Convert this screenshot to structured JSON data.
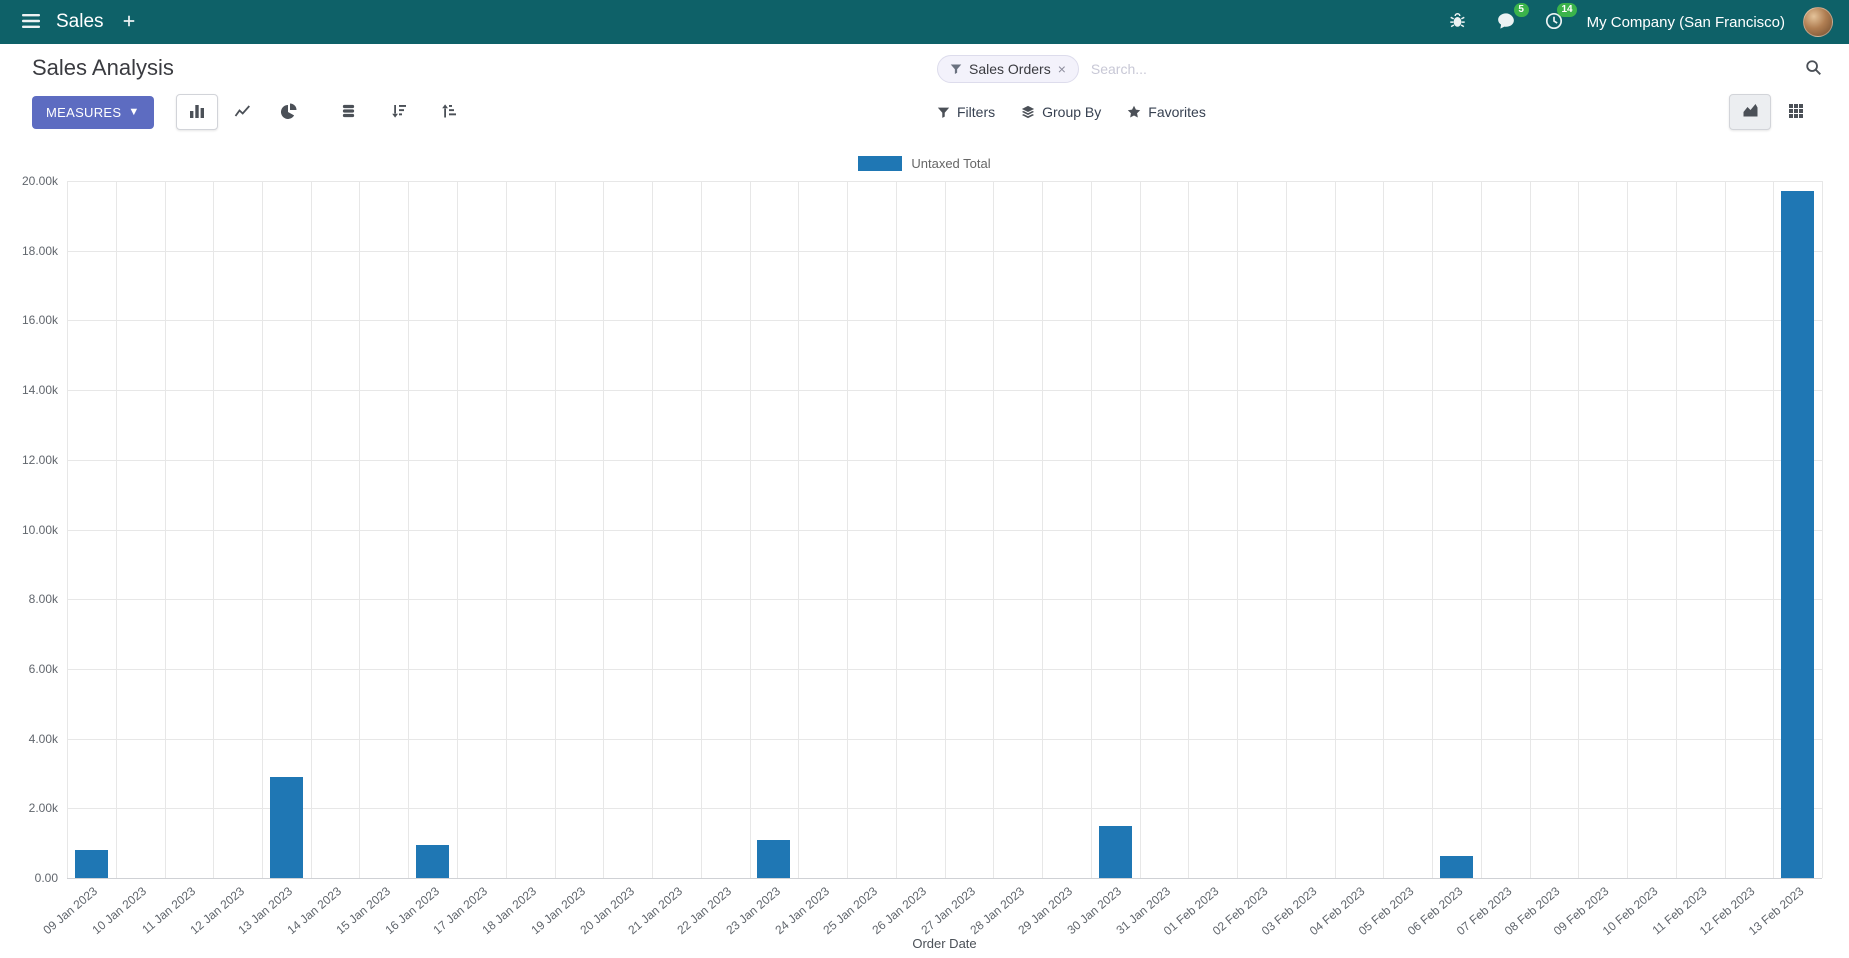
{
  "navbar": {
    "app_name": "Sales",
    "message_badge": "5",
    "activity_badge": "14",
    "company": "My Company (San Francisco)"
  },
  "control_panel": {
    "title": "Sales Analysis",
    "measures_label": "MEASURES",
    "search": {
      "facet_label": "Sales Orders",
      "facet_remove": "×",
      "placeholder": "Search..."
    },
    "filters_label": "Filters",
    "group_by_label": "Group By",
    "favorites_label": "Favorites"
  },
  "chart_data": {
    "type": "bar",
    "title": "",
    "legend": "Untaxed Total",
    "legend_position": "top",
    "series_color": "#1f77b4",
    "grid": true,
    "xlabel": "Order Date",
    "ylabel": "",
    "ylim": [
      0,
      20000
    ],
    "ytick_step": 2000,
    "ytick_labels": [
      "20.00k",
      "18.00k",
      "16.00k",
      "14.00k",
      "12.00k",
      "10.00k",
      "8.00k",
      "6.00k",
      "4.00k",
      "2.00k",
      "0.00"
    ],
    "categories": [
      "09 Jan 2023",
      "10 Jan 2023",
      "11 Jan 2023",
      "12 Jan 2023",
      "13 Jan 2023",
      "14 Jan 2023",
      "15 Jan 2023",
      "16 Jan 2023",
      "17 Jan 2023",
      "18 Jan 2023",
      "19 Jan 2023",
      "20 Jan 2023",
      "21 Jan 2023",
      "22 Jan 2023",
      "23 Jan 2023",
      "24 Jan 2023",
      "25 Jan 2023",
      "26 Jan 2023",
      "27 Jan 2023",
      "28 Jan 2023",
      "29 Jan 2023",
      "30 Jan 2023",
      "31 Jan 2023",
      "01 Feb 2023",
      "02 Feb 2023",
      "03 Feb 2023",
      "04 Feb 2023",
      "05 Feb 2023",
      "06 Feb 2023",
      "07 Feb 2023",
      "08 Feb 2023",
      "09 Feb 2023",
      "10 Feb 2023",
      "11 Feb 2023",
      "12 Feb 2023",
      "13 Feb 2023"
    ],
    "values": [
      800,
      0,
      0,
      0,
      2900,
      0,
      0,
      950,
      0,
      0,
      0,
      0,
      0,
      0,
      1080,
      0,
      0,
      0,
      0,
      0,
      0,
      1500,
      0,
      0,
      0,
      0,
      0,
      0,
      620,
      0,
      0,
      0,
      0,
      0,
      0,
      19700
    ]
  }
}
